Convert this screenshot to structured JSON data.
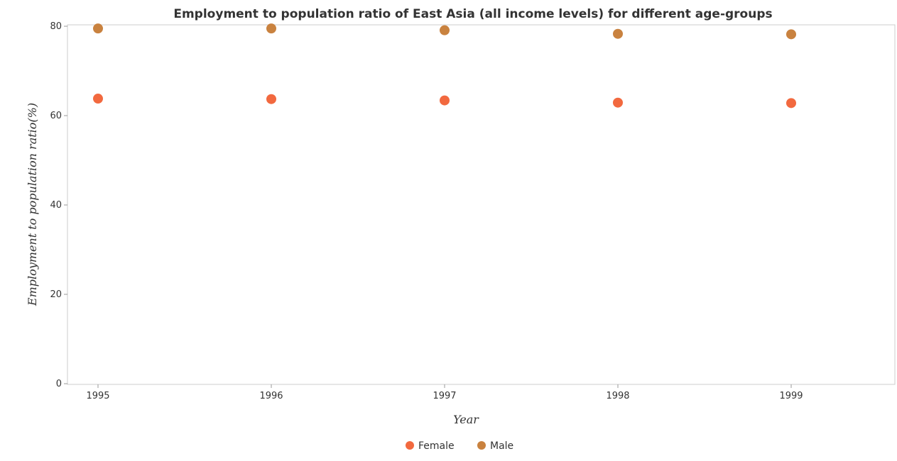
{
  "chart_data": {
    "type": "scatter",
    "title": "Employment to population ratio of East Asia (all income levels) for different age-groups",
    "xlabel": "Year",
    "ylabel": "Employment to population ratio(%)",
    "categories": [
      "1995",
      "1996",
      "1997",
      "1998",
      "1999"
    ],
    "ylim": [
      0,
      80
    ],
    "yticks": [
      0,
      20,
      40,
      60,
      80
    ],
    "grid": false,
    "legend_position": "bottom-center",
    "series": [
      {
        "name": "Female",
        "color": "#f2693f",
        "values": [
          63.8,
          63.7,
          63.4,
          62.9,
          62.8
        ]
      },
      {
        "name": "Male",
        "color": "#c9823f",
        "values": [
          79.5,
          79.5,
          79.1,
          78.3,
          78.2
        ]
      }
    ]
  }
}
